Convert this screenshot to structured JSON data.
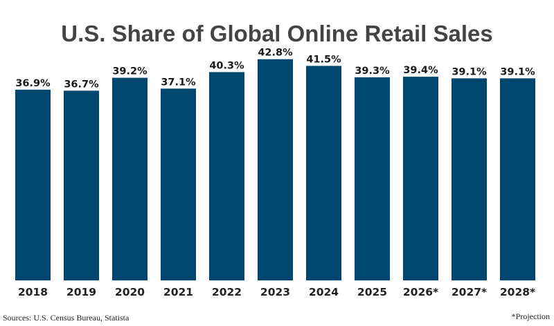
{
  "chart_data": {
    "type": "bar",
    "title": "U.S. Share of Global Online Retail Sales",
    "categories": [
      "2018",
      "2019",
      "2020",
      "2021",
      "2022",
      "2023",
      "2024",
      "2025",
      "2026*",
      "2027*",
      "2028*"
    ],
    "values": [
      36.9,
      36.7,
      39.2,
      37.1,
      40.3,
      42.8,
      41.5,
      39.3,
      39.4,
      39.1,
      39.1
    ],
    "value_labels": [
      "36.9%",
      "36.7%",
      "39.2%",
      "37.1%",
      "40.3%",
      "42.8%",
      "41.5%",
      "39.3%",
      "39.4%",
      "39.1%",
      "39.1%"
    ],
    "ylim": [
      0,
      47.3
    ],
    "grid": false,
    "bar_color": "#00476f",
    "source": "Sources: U.S. Census Bureau, Statista",
    "note": "*Projection"
  }
}
